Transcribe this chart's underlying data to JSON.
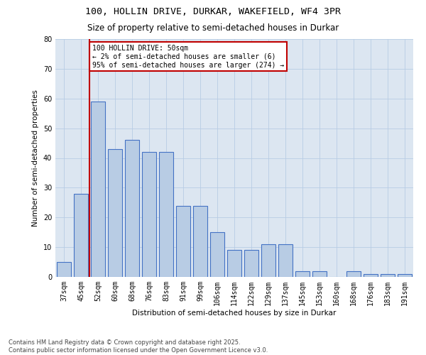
{
  "title_line1": "100, HOLLIN DRIVE, DURKAR, WAKEFIELD, WF4 3PR",
  "title_line2": "Size of property relative to semi-detached houses in Durkar",
  "xlabel": "Distribution of semi-detached houses by size in Durkar",
  "ylabel": "Number of semi-detached properties",
  "categories": [
    "37sqm",
    "45sqm",
    "52sqm",
    "60sqm",
    "68sqm",
    "76sqm",
    "83sqm",
    "91sqm",
    "99sqm",
    "106sqm",
    "114sqm",
    "122sqm",
    "129sqm",
    "137sqm",
    "145sqm",
    "153sqm",
    "160sqm",
    "168sqm",
    "176sqm",
    "183sqm",
    "191sqm"
  ],
  "values": [
    5,
    28,
    59,
    43,
    46,
    42,
    42,
    24,
    24,
    15,
    9,
    9,
    11,
    11,
    2,
    2,
    0,
    2,
    1,
    1,
    1
  ],
  "bar_color": "#b8cce4",
  "bar_edge_color": "#4472c4",
  "vline_color": "#c00000",
  "annotation_text": "100 HOLLIN DRIVE: 50sqm\n← 2% of semi-detached houses are smaller (6)\n95% of semi-detached houses are larger (274) →",
  "annotation_box_color": "#ffffff",
  "annotation_box_edge": "#c00000",
  "ylim": [
    0,
    80
  ],
  "yticks": [
    0,
    10,
    20,
    30,
    40,
    50,
    60,
    70,
    80
  ],
  "grid_color": "#b8cce4",
  "background_color": "#dce6f1",
  "footer_line1": "Contains HM Land Registry data © Crown copyright and database right 2025.",
  "footer_line2": "Contains public sector information licensed under the Open Government Licence v3.0.",
  "title_fontsize": 9.5,
  "subtitle_fontsize": 8.5,
  "axis_label_fontsize": 7.5,
  "tick_fontsize": 7,
  "annotation_fontsize": 7,
  "footer_fontsize": 6
}
